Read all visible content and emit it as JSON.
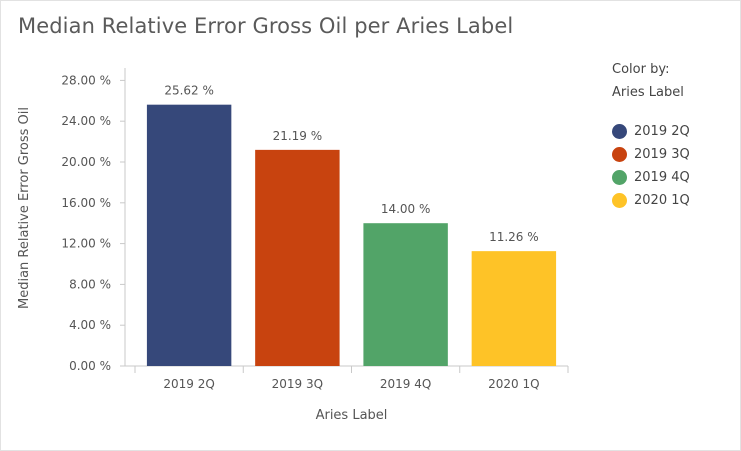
{
  "chart_data": {
    "type": "bar",
    "title": "Median Relative Error Gross Oil per Aries Label",
    "xlabel": "Aries Label",
    "ylabel": "Median Relative Error Gross Oil",
    "categories": [
      "2019 2Q",
      "2019 3Q",
      "2019 4Q",
      "2020 1Q"
    ],
    "values": [
      25.62,
      21.19,
      14.0,
      11.26
    ],
    "data_labels": [
      "25.62 %",
      "21.19 %",
      "14.00 %",
      "11.26 %"
    ],
    "colors": [
      "#36487a",
      "#c8430f",
      "#52a468",
      "#fec327"
    ],
    "ylim": [
      0,
      30
    ],
    "yticks": [
      0,
      4,
      8,
      12,
      16,
      20,
      24,
      28
    ],
    "ytick_labels": [
      "0.00 %",
      "4.00 %",
      "8.00 %",
      "12.00 %",
      "16.00 %",
      "20.00 %",
      "24.00 %",
      "28.00 %"
    ],
    "grid": false,
    "legend_position": "right"
  },
  "legend": {
    "title_line1": "Color by:",
    "title_line2": "Aries Label",
    "items": [
      {
        "label": "2019 2Q",
        "color": "#36487a"
      },
      {
        "label": "2019 3Q",
        "color": "#c8430f"
      },
      {
        "label": "2019 4Q",
        "color": "#52a468"
      },
      {
        "label": "2020 1Q",
        "color": "#fec327"
      }
    ]
  }
}
